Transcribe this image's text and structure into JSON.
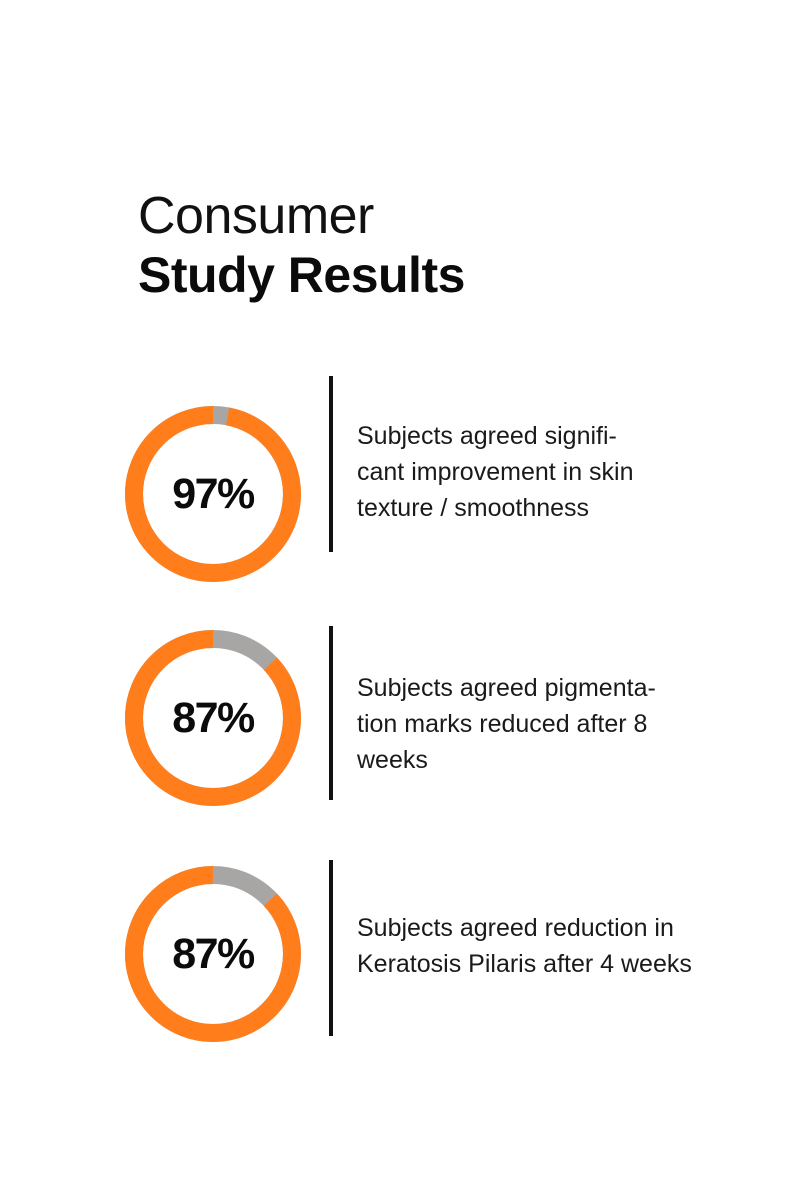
{
  "heading": {
    "line1": "Consumer",
    "line2": "Study Results"
  },
  "colors": {
    "ring_fill": "#ff7e1b",
    "ring_track": "#a8a6a4",
    "text": "#111111",
    "background": "#ffffff"
  },
  "chart_data": {
    "type": "pie",
    "variant": "donut",
    "items": [
      {
        "label": "97%",
        "value": 97,
        "description": "Subjects agreed signifi-\ncant improvement in skin\ntexture / smoothness"
      },
      {
        "label": "87%",
        "value": 87,
        "description": "Subjects agreed pigmenta-\ntion marks reduced after 8\nweeks"
      },
      {
        "label": "87%",
        "value": 87,
        "description": "Subjects agreed reduction in\nKeratosis Pilaris after 4 weeks"
      }
    ]
  }
}
